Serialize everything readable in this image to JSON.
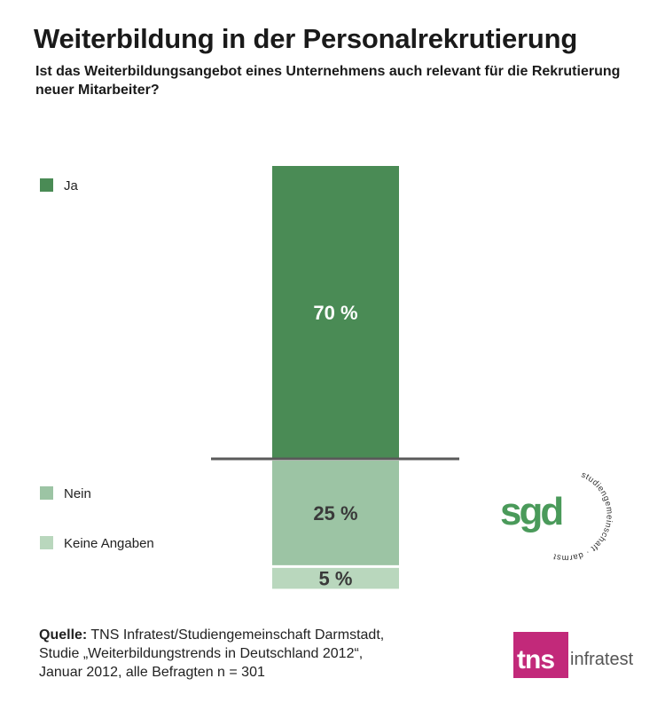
{
  "chart_data": {
    "type": "bar",
    "orientation": "stacked-vertical",
    "title": "Weiterbildung in der Personalrekrutierung",
    "subtitle": "Ist das Weiterbildungsangebot eines Unternehmens auch relevant für die Rekrutierung neuer Mitarbeiter?",
    "series": [
      {
        "name": "Ja",
        "value": 70,
        "label": "70 %",
        "color": "#4a8b55"
      },
      {
        "name": "Nein",
        "value": 25,
        "label": "25 %",
        "color": "#9cc4a4"
      },
      {
        "name": "Keine Angaben",
        "value": 5,
        "label": "5 %",
        "color": "#b9d7bd"
      }
    ],
    "unit": "%"
  },
  "source": {
    "label": "Quelle:",
    "line1": "TNS Infratest/Studiengemeinschaft Darmstadt,",
    "line2": "Studie „Weiterbildungstrends in Deutschland 2012“,",
    "line3": "Januar 2012, alle Befragten n = 301"
  },
  "logos": {
    "sgd": {
      "mark": "sgd",
      "ring_text": "studiengemeinschaft · darmstadt",
      "color": "#4a9a5a"
    },
    "tns": {
      "mark": "tns",
      "text": "infratest",
      "color": "#c2297a"
    }
  }
}
